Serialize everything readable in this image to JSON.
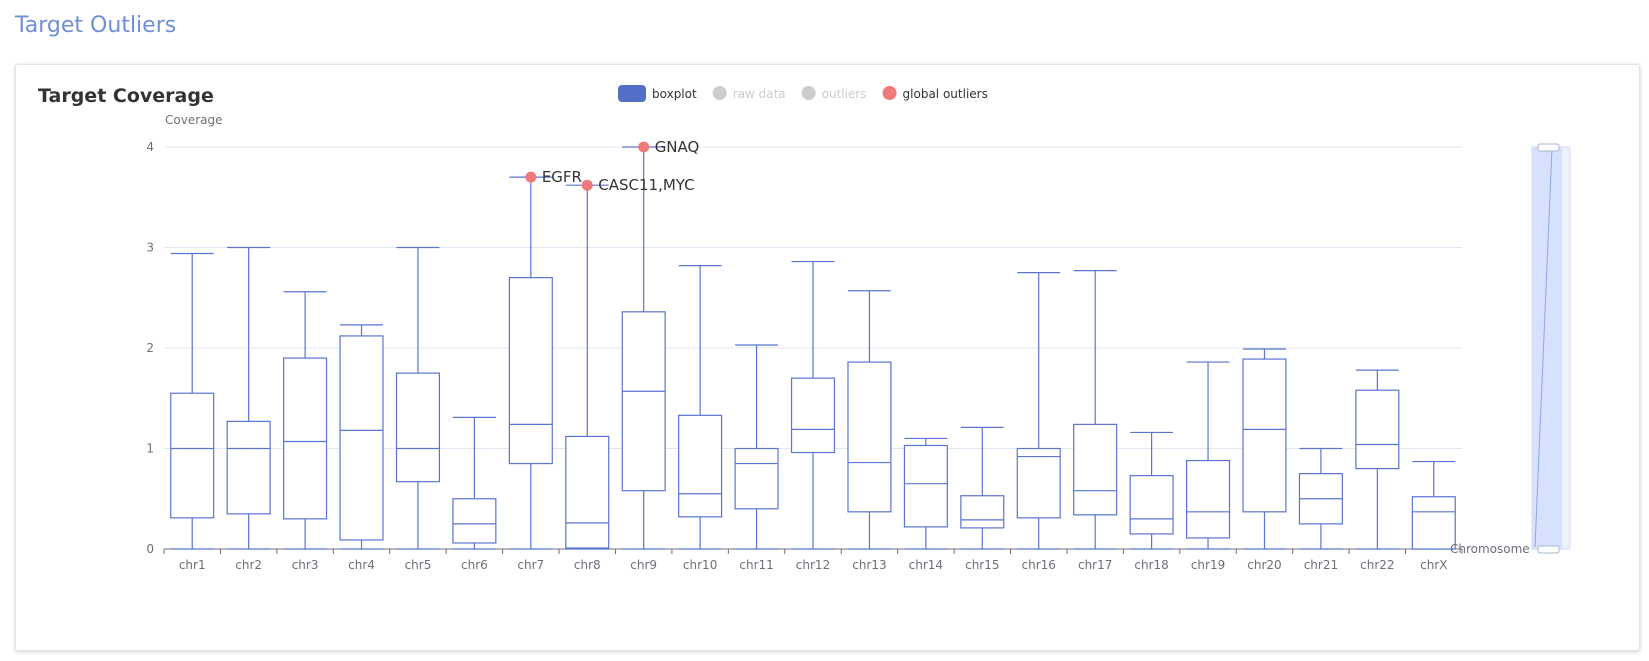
{
  "page_title": "Target Outliers",
  "card_title": "Target Coverage",
  "legend": [
    {
      "label": "boxplot",
      "color": "#5470c6",
      "active": true,
      "shape": "roundRect"
    },
    {
      "label": "raw data",
      "color": "#cccccc",
      "active": false,
      "shape": "circle"
    },
    {
      "label": "outliers",
      "color": "#cccccc",
      "active": false,
      "shape": "circle"
    },
    {
      "label": "global outliers",
      "color": "#ee7a7a",
      "active": true,
      "shape": "circle"
    }
  ],
  "colors": {
    "box": "#5b74d1",
    "outlier": "#ee7a7a",
    "grid": "#e0e6f1",
    "axis": "#6e7079",
    "slider": "#d4defc"
  },
  "chart_data": {
    "type": "boxplot",
    "ylabel": "Coverage",
    "xlabel": "Chromosome",
    "ylim": [
      0,
      4
    ],
    "yticks": [
      0,
      1,
      2,
      3,
      4
    ],
    "grid": true,
    "legend_position": "top-center",
    "categories": [
      "chr1",
      "chr2",
      "chr3",
      "chr4",
      "chr5",
      "chr6",
      "chr7",
      "chr8",
      "chr9",
      "chr10",
      "chr11",
      "chr12",
      "chr13",
      "chr14",
      "chr15",
      "chr16",
      "chr17",
      "chr18",
      "chr19",
      "chr20",
      "chr21",
      "chr22",
      "chrX"
    ],
    "boxes": [
      {
        "min": 0,
        "q1": 0.31,
        "median": 1.0,
        "q3": 1.55,
        "max": 2.94
      },
      {
        "min": 0,
        "q1": 0.35,
        "median": 1.0,
        "q3": 1.27,
        "max": 3.0
      },
      {
        "min": 0,
        "q1": 0.3,
        "median": 1.07,
        "q3": 1.9,
        "max": 2.56
      },
      {
        "min": 0,
        "q1": 0.09,
        "median": 1.18,
        "q3": 2.12,
        "max": 2.23
      },
      {
        "min": 0,
        "q1": 0.67,
        "median": 1.0,
        "q3": 1.75,
        "max": 3.0
      },
      {
        "min": 0,
        "q1": 0.06,
        "median": 0.25,
        "q3": 0.5,
        "max": 1.31
      },
      {
        "min": 0,
        "q1": 0.85,
        "median": 1.24,
        "q3": 2.7,
        "max": 3.7
      },
      {
        "min": 0,
        "q1": 0.01,
        "median": 0.26,
        "q3": 1.12,
        "max": 3.62
      },
      {
        "min": 0,
        "q1": 0.58,
        "median": 1.57,
        "q3": 2.36,
        "max": 4.0
      },
      {
        "min": 0,
        "q1": 0.32,
        "median": 0.55,
        "q3": 1.33,
        "max": 2.82
      },
      {
        "min": 0,
        "q1": 0.4,
        "median": 0.85,
        "q3": 1.0,
        "max": 2.03
      },
      {
        "min": 0,
        "q1": 0.96,
        "median": 1.19,
        "q3": 1.7,
        "max": 2.86
      },
      {
        "min": 0,
        "q1": 0.37,
        "median": 0.86,
        "q3": 1.86,
        "max": 2.57
      },
      {
        "min": 0,
        "q1": 0.22,
        "median": 0.65,
        "q3": 1.03,
        "max": 1.1
      },
      {
        "min": 0,
        "q1": 0.21,
        "median": 0.29,
        "q3": 0.53,
        "max": 1.21
      },
      {
        "min": 0,
        "q1": 0.31,
        "median": 0.92,
        "q3": 1.0,
        "max": 2.75
      },
      {
        "min": 0,
        "q1": 0.34,
        "median": 0.58,
        "q3": 1.24,
        "max": 2.77
      },
      {
        "min": 0,
        "q1": 0.15,
        "median": 0.3,
        "q3": 0.73,
        "max": 1.16
      },
      {
        "min": 0,
        "q1": 0.11,
        "median": 0.37,
        "q3": 0.88,
        "max": 1.86
      },
      {
        "min": 0,
        "q1": 0.37,
        "median": 1.19,
        "q3": 1.89,
        "max": 1.99
      },
      {
        "min": 0,
        "q1": 0.25,
        "median": 0.5,
        "q3": 0.75,
        "max": 1.0
      },
      {
        "min": 0,
        "q1": 0.8,
        "median": 1.04,
        "q3": 1.58,
        "max": 1.78
      },
      {
        "min": 0,
        "q1": 0.0,
        "median": 0.37,
        "q3": 0.52,
        "max": 0.87
      }
    ],
    "global_outliers": [
      {
        "category": "chr7",
        "value": 3.7,
        "label": "EGFR"
      },
      {
        "category": "chr8",
        "value": 3.62,
        "label": "CASC11,MYC"
      },
      {
        "category": "chr9",
        "value": 4.0,
        "label": "GNAQ"
      }
    ]
  }
}
